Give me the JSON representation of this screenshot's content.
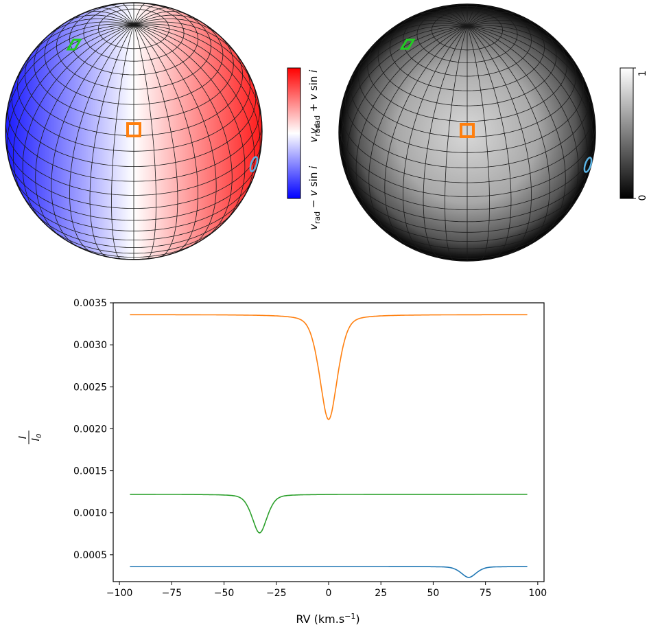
{
  "colorbar_velocity": {
    "label_bottom": "v_rad - v sin i",
    "label_middle": "v_rad",
    "label_top": "v_rad + v sin i",
    "colors": {
      "low": "#0000ff",
      "mid": "#ffffff",
      "high": "#ff0000"
    }
  },
  "colorbar_intensity": {
    "tick_low": "0",
    "tick_high": "1",
    "colors": {
      "low": "#000000",
      "high": "#ffffff"
    }
  },
  "markers": {
    "green": "#22cc22",
    "orange": "#ff7f0e",
    "blue": "#5ab4e6"
  },
  "chart_data": {
    "type": "line",
    "xlabel": "RV (km.s",
    "xlabel_sup": "−1",
    "xlabel_end": ")",
    "ylabel_num": "I",
    "ylabel_den": "I",
    "ylabel_den_sub": "0",
    "xlim": [
      -103,
      103
    ],
    "ylim": [
      0.00018,
      0.0035
    ],
    "xticks": [
      -100,
      -75,
      -50,
      -25,
      0,
      25,
      50,
      75,
      100
    ],
    "xtick_labels": [
      "−100",
      "−75",
      "−50",
      "−25",
      "0",
      "25",
      "50",
      "75",
      "100"
    ],
    "yticks": [
      0.0005,
      0.001,
      0.0015,
      0.002,
      0.0025,
      0.003,
      0.0035
    ],
    "ytick_labels": [
      "0.0005",
      "0.0010",
      "0.0015",
      "0.0020",
      "0.0025",
      "0.0030",
      "0.0035"
    ],
    "grid": false,
    "series": [
      {
        "color": "#ff7f0e",
        "x_range": [
          -95,
          95
        ],
        "continuum": 0.00336,
        "line_center": 0,
        "line_depth": 0.00125,
        "line_width": 4.5
      },
      {
        "color": "#2ca02c",
        "x_range": [
          -95,
          95
        ],
        "continuum": 0.00122,
        "line_center": -33,
        "line_depth": 0.00046,
        "line_width": 3.8
      },
      {
        "color": "#1f77b4",
        "x_range": [
          -95,
          95
        ],
        "continuum": 0.00036,
        "line_center": 67,
        "line_depth": 0.00013,
        "line_width": 3.8
      }
    ]
  }
}
